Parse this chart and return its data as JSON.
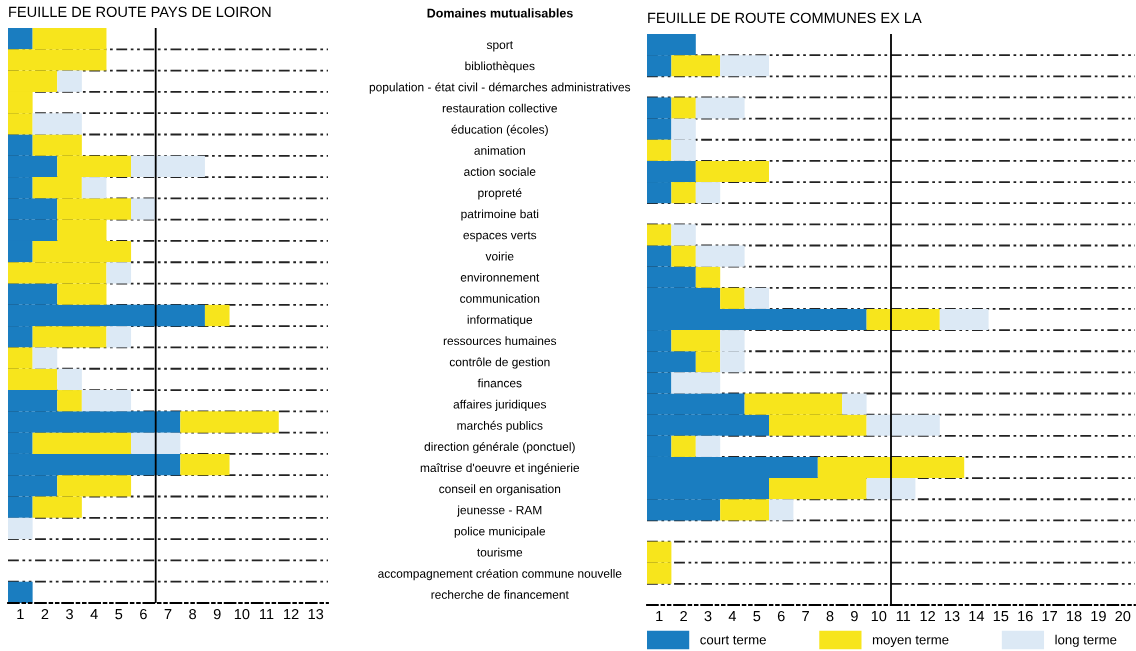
{
  "chart_data": [
    {
      "type": "bar",
      "orientation": "horizontal",
      "stacked": true,
      "title": "FEUILLE DE ROUTE PAYS DE LOIRON",
      "tick_labels": "x",
      "grid": "y",
      "legend": false,
      "categories": [
        null,
        null,
        null,
        null,
        null,
        null,
        null,
        null,
        null,
        null,
        null,
        null,
        null,
        null,
        null,
        null,
        null,
        null,
        null,
        null,
        null,
        null,
        null,
        null,
        null,
        null,
        null
      ],
      "xlim": [
        0,
        13
      ],
      "xticks": [
        {
          "value": 0.5,
          "label": "1"
        },
        {
          "value": 1.5,
          "label": "2"
        },
        {
          "value": 2.5,
          "label": "3"
        },
        {
          "value": 3.5,
          "label": "4"
        },
        {
          "value": 4.5,
          "label": "5"
        },
        {
          "value": 5.5,
          "label": "6"
        },
        {
          "value": 6.5,
          "label": "7"
        },
        {
          "value": 7.5,
          "label": "8"
        },
        {
          "value": 8.5,
          "label": "9"
        },
        {
          "value": 9.5,
          "label": "10"
        },
        {
          "value": 10.5,
          "label": "11"
        },
        {
          "value": 11.5,
          "label": "12"
        },
        {
          "value": 12.5,
          "label": "13"
        }
      ],
      "ref_lines": [
        {
          "axis": "x",
          "value": 6,
          "color": "#000000",
          "line_style": "solid"
        }
      ],
      "series": [
        {
          "color": "#1a7dc0",
          "values": [
            1,
            0,
            0,
            0,
            0,
            1,
            2,
            1,
            2,
            2,
            1,
            0,
            2,
            8,
            1,
            0,
            0,
            2,
            7,
            1,
            7,
            2,
            1,
            0,
            0,
            0,
            1
          ]
        },
        {
          "color": "#f7e51c",
          "values": [
            3,
            4,
            2,
            1,
            1,
            2,
            3,
            2,
            3,
            2,
            4,
            4,
            2,
            1,
            3,
            1,
            2,
            1,
            4,
            4,
            2,
            3,
            2,
            0,
            0,
            0,
            0
          ]
        },
        {
          "color": "#dce9f5",
          "values": [
            0,
            0,
            1,
            0,
            2,
            0,
            3,
            1,
            1,
            0,
            0,
            1,
            0,
            0,
            1,
            1,
            1,
            2,
            0,
            2,
            0,
            0,
            0,
            1,
            0,
            0,
            0
          ]
        }
      ]
    },
    {
      "type": "bar",
      "orientation": "horizontal",
      "stacked": true,
      "title": "FEUILLE DE ROUTE COMMUNES EX LA",
      "ylabel": "Domaines mutualisables",
      "grid": "y",
      "legend": "bottom",
      "categories": [
        "sport",
        "bibliothèques",
        "population - état civil - démarches administratives",
        "restauration collective",
        "éducation (écoles)",
        "animation",
        "action sociale",
        "propreté",
        "patrimoine bati",
        "espaces verts",
        "voirie",
        "environnement",
        "communication",
        "informatique",
        "ressources humaines",
        "contrôle de gestion",
        "finances",
        "affaires juridiques",
        "marchés publics",
        "direction générale (ponctuel)",
        "maîtrise d'oeuvre et ingénierie",
        "conseil en organisation",
        "jeunesse - RAM",
        "police municipale",
        "tourisme",
        "accompagnement création commune nouvelle",
        "recherche de financement"
      ],
      "xlim": [
        0,
        20
      ],
      "xticks": [
        {
          "value": 0.5,
          "label": "1"
        },
        {
          "value": 1.5,
          "label": "2"
        },
        {
          "value": 2.5,
          "label": "3"
        },
        {
          "value": 3.5,
          "label": "4"
        },
        {
          "value": 4.5,
          "label": "5"
        },
        {
          "value": 5.5,
          "label": "6"
        },
        {
          "value": 6.5,
          "label": "7"
        },
        {
          "value": 7.5,
          "label": "8"
        },
        {
          "value": 8.5,
          "label": "9"
        },
        {
          "value": 9.5,
          "label": "10"
        },
        {
          "value": 10.5,
          "label": "11"
        },
        {
          "value": 11.5,
          "label": "12"
        },
        {
          "value": 12.5,
          "label": "13"
        },
        {
          "value": 13.5,
          "label": "14"
        },
        {
          "value": 14.5,
          "label": "15"
        },
        {
          "value": 15.5,
          "label": "16"
        },
        {
          "value": 16.5,
          "label": "17"
        },
        {
          "value": 17.5,
          "label": "18"
        },
        {
          "value": 18.5,
          "label": "19"
        },
        {
          "value": 19.5,
          "label": "20"
        }
      ],
      "ref_lines": [
        {
          "axis": "x",
          "value": 10,
          "color": "#000000",
          "line_style": "solid"
        }
      ],
      "series": [
        {
          "name": "court terme",
          "color": "#1a7dc0",
          "values": [
            2,
            1,
            0,
            1,
            1,
            0,
            2,
            1,
            0,
            0,
            1,
            2,
            3,
            9,
            1,
            2,
            1,
            4,
            5,
            1,
            7,
            5,
            3,
            0,
            0,
            0,
            0
          ]
        },
        {
          "name": "moyen terme",
          "color": "#f7e51c",
          "values": [
            0,
            2,
            0,
            1,
            0,
            1,
            3,
            1,
            0,
            1,
            1,
            1,
            1,
            3,
            2,
            1,
            0,
            4,
            4,
            1,
            6,
            4,
            2,
            0,
            1,
            1,
            0
          ]
        },
        {
          "name": "long terme",
          "color": "#dce9f5",
          "values": [
            0,
            2,
            0,
            2,
            1,
            1,
            0,
            1,
            0,
            1,
            2,
            0,
            1,
            2,
            1,
            1,
            2,
            1,
            3,
            1,
            0,
            2,
            1,
            0,
            0,
            0,
            0
          ]
        }
      ]
    }
  ]
}
